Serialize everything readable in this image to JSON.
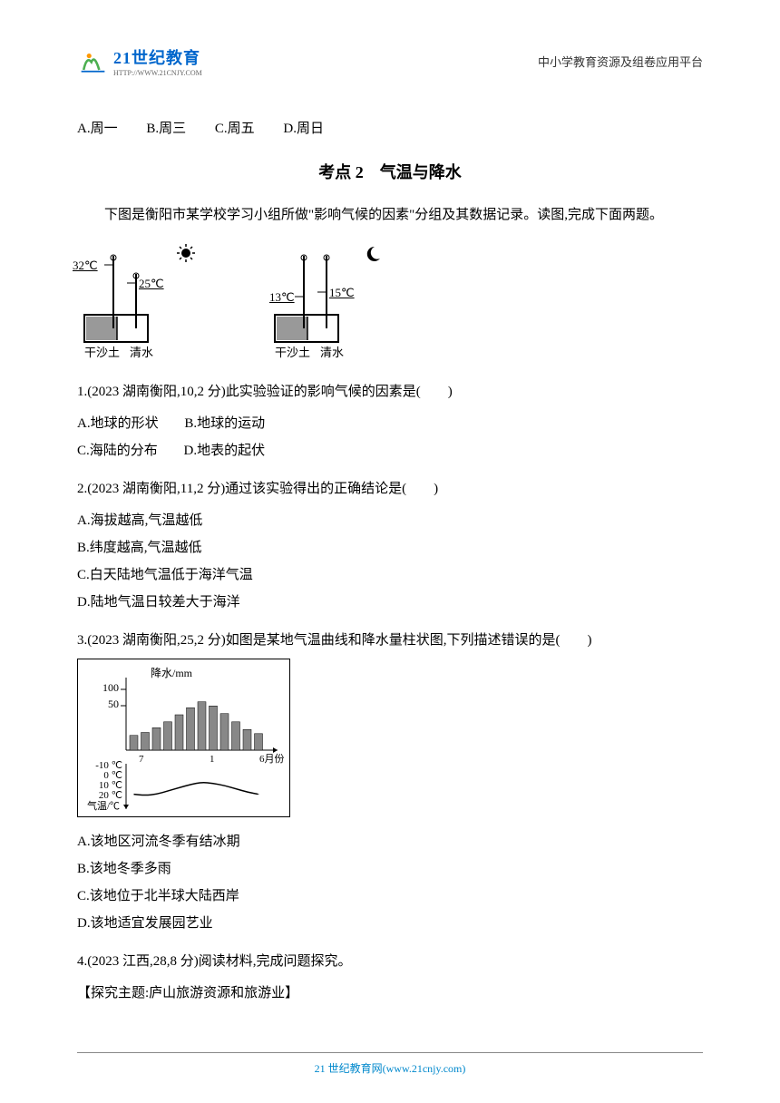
{
  "header": {
    "logo_main": "21世纪教育",
    "logo_sub": "HTTP://WWW.21CNJY.COM",
    "right_text": "中小学教育资源及组卷应用平台"
  },
  "top_options": {
    "a": "A.周一",
    "b": "B.周三",
    "c": "C.周五",
    "d": "D.周日"
  },
  "section2": {
    "title": "考点 2　气温与降水",
    "intro": "下图是衡阳市某学校学习小组所做\"影响气候的因素\"分组及其数据记录。读图,完成下面两题。"
  },
  "experiment": {
    "day": {
      "sand_temp": "32℃",
      "water_temp": "25℃",
      "sand_label": "干沙土",
      "water_label": "清水",
      "sun_icon": "☀"
    },
    "night": {
      "sand_temp": "13℃",
      "water_temp": "15℃",
      "sand_label": "干沙土",
      "water_label": "清水",
      "moon_icon": "☽"
    }
  },
  "q1": {
    "stem": "1.(2023 湖南衡阳,10,2 分)此实验验证的影响气候的因素是(　　)",
    "a": "A.地球的形状",
    "b": "B.地球的运动",
    "c": "C.海陆的分布",
    "d": "D.地表的起伏"
  },
  "q2": {
    "stem": "2.(2023 湖南衡阳,11,2 分)通过该实验得出的正确结论是(　　)",
    "a": "A.海拔越高,气温越低",
    "b": "B.纬度越高,气温越低",
    "c": "C.白天陆地气温低于海洋气温",
    "d": "D.陆地气温日较差大于海洋"
  },
  "q3": {
    "stem": "3.(2023 湖南衡阳,25,2 分)如图是某地气温曲线和降水量柱状图,下列描述错误的是(　　)",
    "a": "A.该地区河流冬季有结冰期",
    "b": "B.该地冬季多雨",
    "c": "C.该地位于北半球大陆西岸",
    "d": "D.该地适宜发展园艺业"
  },
  "q4": {
    "stem": "4.(2023 江西,28,8 分)阅读材料,完成问题探究。",
    "subtitle": "【探究主题:庐山旅游资源和旅游业】"
  },
  "climate": {
    "precip_label": "降水/mm",
    "precip_ticks": [
      "100",
      "50"
    ],
    "temp_ticks": [
      "-10 ℃",
      "0 ℃",
      "10 ℃",
      "20 ℃"
    ],
    "temp_axis": "气温/℃",
    "month_7": "7",
    "month_1": "1",
    "month_6": "6月份",
    "bars": [
      25,
      30,
      38,
      48,
      60,
      72,
      82,
      75,
      62,
      48,
      35,
      28
    ],
    "bar_color": "#888888",
    "temp_values": [
      18,
      19,
      18,
      15,
      12,
      9,
      7,
      8,
      10,
      13,
      16,
      18
    ]
  },
  "colors": {
    "text": "#000000",
    "logo_blue": "#0066cc",
    "logo_green": "#4caf50",
    "footer_blue": "#0088cc",
    "diagram_fill_sand": "#999999",
    "diagram_fill_water": "#ffffff"
  },
  "footer": {
    "text": "21 世纪教育网(www.21cnjy.com)"
  }
}
